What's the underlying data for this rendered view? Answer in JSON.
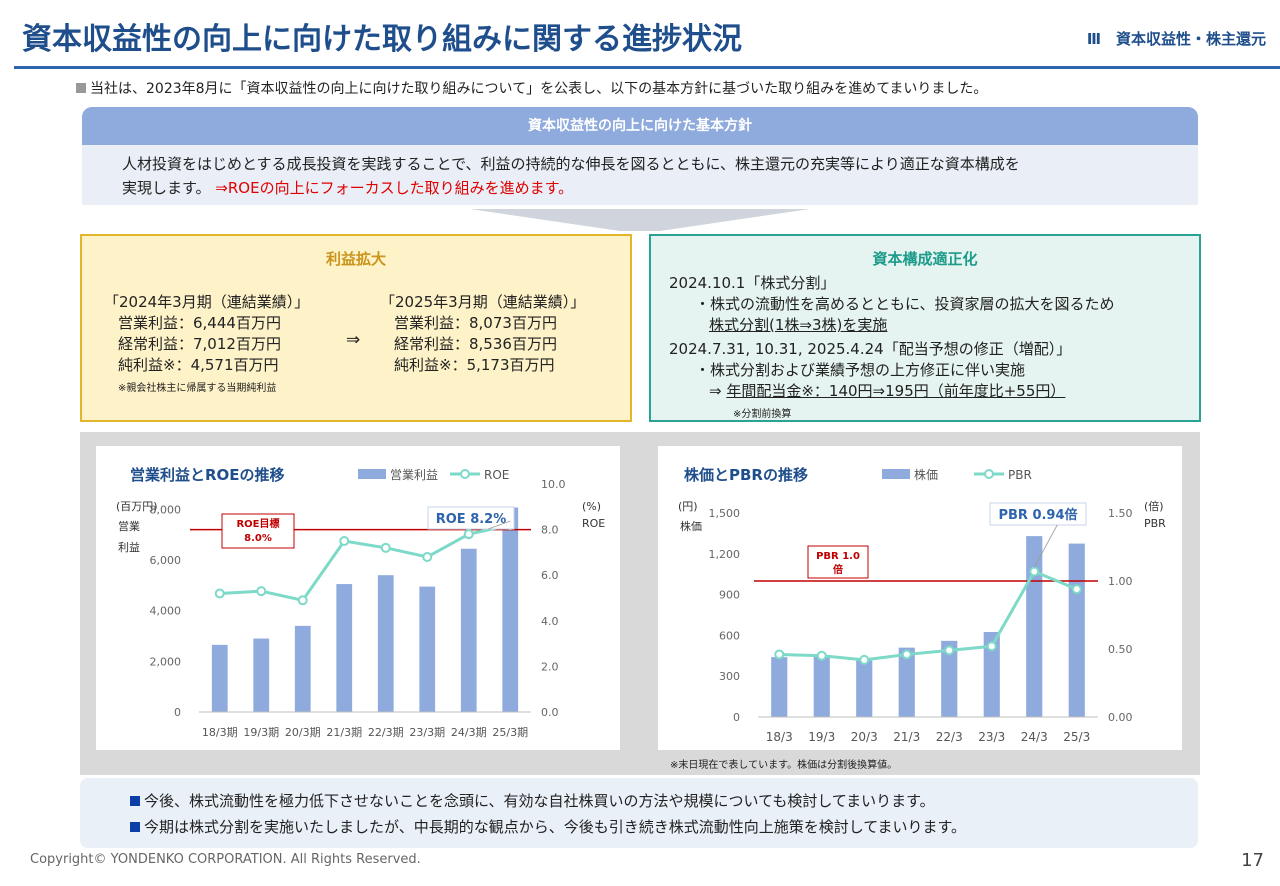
{
  "header": {
    "title": "資本収益性の向上に向けた取り組みに関する進捗状況",
    "section": "Ⅲ　資本収益性・株主還元"
  },
  "intro": "当社は、2023年8月に「資本収益性の向上に向けた取り組みについて」を公表し、以下の基本方針に基づいた取り組みを進めてまいりました。",
  "policy": {
    "heading": "資本収益性の向上に向けた基本方針",
    "line1": "人材投資をはじめとする成長投資を実践することで、利益の持続的な伸長を図るとともに、株主還元の充実等により適正な資本構成を",
    "line2": "実現します。",
    "line2_highlight": "⇒ROEの向上にフォーカスした取り組みを進めます。"
  },
  "profit_card": {
    "title": "利益拡大",
    "fy2024": {
      "label": "「2024年3月期（連結業績）」",
      "op": "営業利益：6,444百万円",
      "ord": "経常利益：7,012百万円",
      "net": "純利益※：4,571百万円"
    },
    "arrow": "⇒",
    "fy2025": {
      "label": "「2025年3月期（連結業績）」",
      "op": "営業利益：8,073百万円",
      "ord": "経常利益：8,536百万円",
      "net": "純利益※：5,173百万円"
    },
    "note": "※親会社株主に帰属する当期純利益"
  },
  "capital_card": {
    "title": "資本構成適正化",
    "line1": "2024.10.1「株式分割」",
    "line2": "・株式の流動性を高めるとともに、投資家層の拡大を図るため",
    "line3": "株式分割(1株⇒3株)を実施",
    "line4": "2024.7.31,  10.31,  2025.4.24「配当予想の修正（増配）」",
    "line5": "・株式分割および業績予想の上方修正に伴い実施",
    "line6_prefix": "⇒ ",
    "line6": "年間配当金※：140円⇒195円（前年度比+55円）",
    "note": "※分割前換算"
  },
  "footnote": "※末日現在で表しています。株価は分割後換算値。",
  "bottom": {
    "line1": "今後、株式流動性を極力低下させないことを念頭に、有効な自社株買いの方法や規模についても検討してまいります。",
    "line2": "今期は株式分割を実施いたしましたが、中長期的な観点から、今後も引き続き株式流動性向上施策を検討してまいります。"
  },
  "copyright": "Copyright© YONDENKO CORPORATION. All Rights Reserved.",
  "page_number": "17",
  "colors": {
    "bar": "#8faadc",
    "line": "#7dd9c8",
    "target": "#c00000",
    "accent": "#2e64ae"
  },
  "chart_data": [
    {
      "type": "bar",
      "title": "営業利益とROEの推移",
      "categories": [
        "18/3期",
        "19/3期",
        "20/3期",
        "21/3期",
        "22/3期",
        "23/3期",
        "24/3期",
        "25/3期"
      ],
      "series": [
        {
          "name": "営業利益",
          "type": "bar",
          "axis": "left",
          "values": [
            2650,
            2900,
            3400,
            5050,
            5400,
            4950,
            6444,
            8073
          ]
        },
        {
          "name": "ROE",
          "type": "line",
          "axis": "right",
          "values": [
            5.2,
            5.3,
            4.9,
            7.5,
            7.2,
            6.8,
            7.8,
            8.2
          ]
        }
      ],
      "y_left": {
        "unit": "(百万円)",
        "label_lines": [
          "営業",
          "利益"
        ],
        "ylim": [
          0,
          9000
        ],
        "ticks": [
          0,
          2000,
          4000,
          6000,
          8000
        ],
        "tick_labels": [
          "0",
          "2,000",
          "4,000",
          "6,000",
          "8,000"
        ]
      },
      "y_right": {
        "unit": "(%)",
        "label": "ROE",
        "ylim": [
          0,
          10
        ],
        "ticks": [
          0,
          2,
          4,
          6,
          8,
          10
        ],
        "tick_labels": [
          "0.0",
          "2.0",
          "4.0",
          "6.0",
          "8.0",
          "10.0"
        ]
      },
      "target": {
        "value": 8.0,
        "axis": "right",
        "label_lines": [
          "ROE目標",
          "8.0%"
        ]
      },
      "callout": "ROE 8.2%",
      "legend": "top"
    },
    {
      "type": "bar",
      "title": "株価とPBRの推移",
      "categories": [
        "18/3",
        "19/3",
        "20/3",
        "21/3",
        "22/3",
        "23/3",
        "24/3",
        "25/3"
      ],
      "series": [
        {
          "name": "株価",
          "type": "bar",
          "axis": "left",
          "values": [
            440,
            445,
            415,
            510,
            560,
            625,
            1330,
            1275
          ]
        },
        {
          "name": "PBR",
          "type": "line",
          "axis": "right",
          "values": [
            0.46,
            0.45,
            0.42,
            0.46,
            0.49,
            0.52,
            1.07,
            0.94
          ]
        }
      ],
      "y_left": {
        "unit": "(円)",
        "label": "株価",
        "ylim": [
          0,
          1500
        ],
        "ticks": [
          0,
          300,
          600,
          900,
          1200,
          1500
        ],
        "tick_labels": [
          "0",
          "300",
          "600",
          "900",
          "1,200",
          "1,500"
        ]
      },
      "y_right": {
        "unit": "(倍)",
        "label": "PBR",
        "ylim": [
          0,
          1.5
        ],
        "ticks": [
          0,
          0.5,
          1.0,
          1.5
        ],
        "tick_labels": [
          "0.00",
          "0.50",
          "1.00",
          "1.50"
        ]
      },
      "target": {
        "value": 1.0,
        "axis": "right",
        "label_lines": [
          "PBR 1.0",
          "倍"
        ]
      },
      "callout": "PBR 0.94倍",
      "legend": "top"
    }
  ]
}
